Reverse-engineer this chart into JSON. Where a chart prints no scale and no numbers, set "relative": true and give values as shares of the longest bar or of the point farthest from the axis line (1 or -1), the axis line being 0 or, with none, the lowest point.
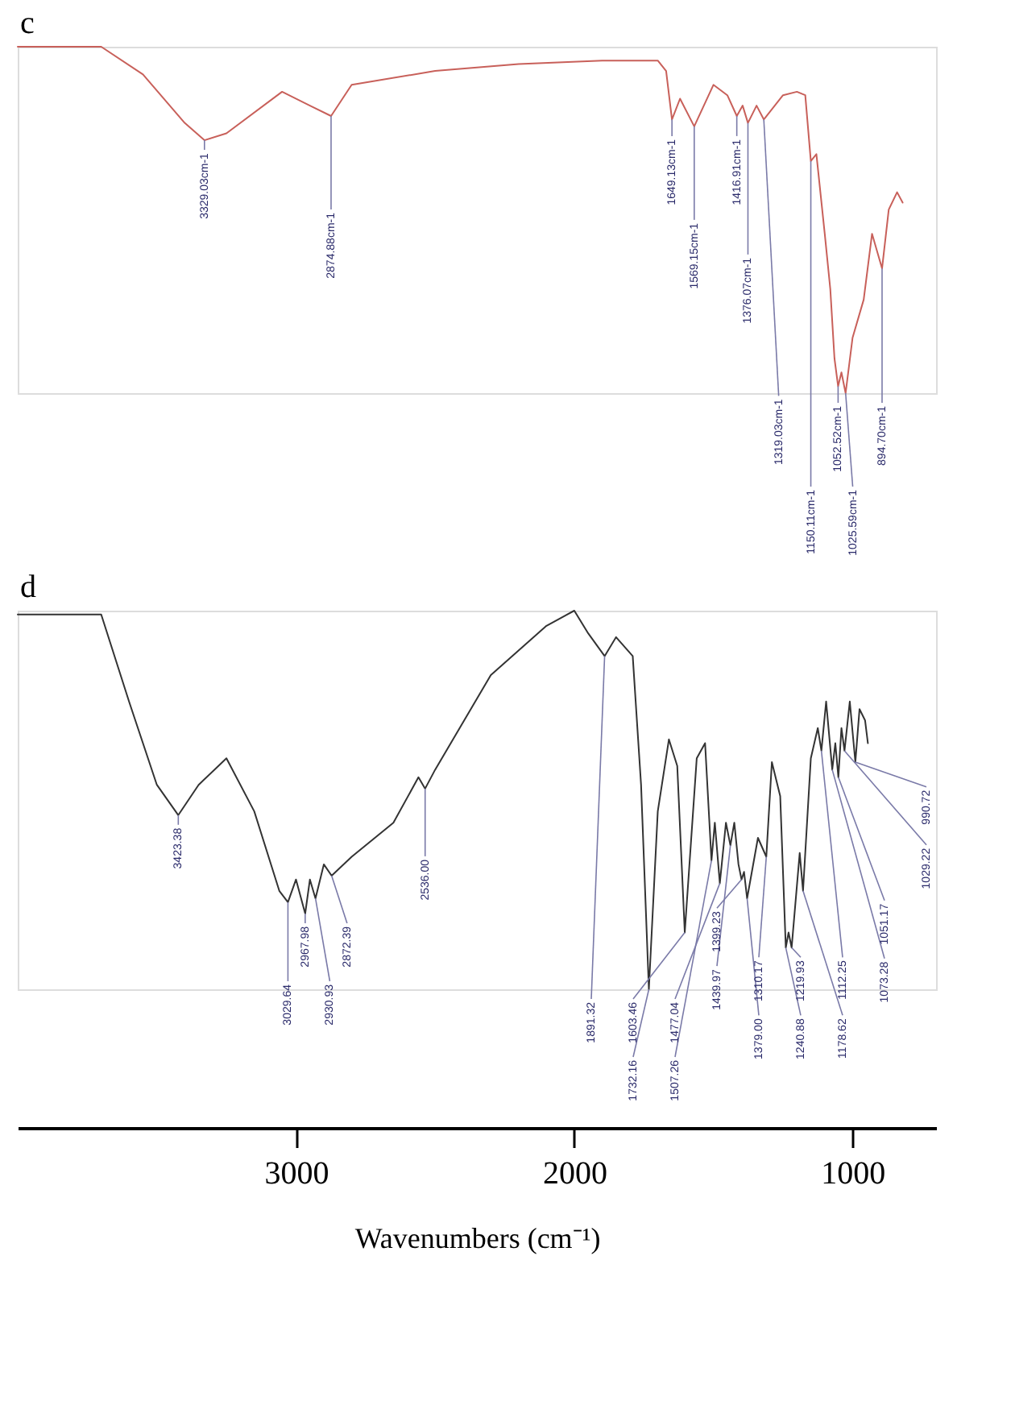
{
  "chart_data": [
    {
      "type": "line",
      "title": "c",
      "relative": true,
      "color": "#c8605a",
      "xlim": [
        4000,
        700
      ],
      "tick_labels": false,
      "x": [
        4000,
        3700,
        3550,
        3400,
        3329,
        3250,
        3050,
        2950,
        2874,
        2800,
        2500,
        2200,
        1900,
        1700,
        1670,
        1649,
        1620,
        1569,
        1500,
        1450,
        1416,
        1395,
        1376,
        1345,
        1319,
        1250,
        1200,
        1170,
        1150,
        1130,
        1100,
        1080,
        1065,
        1052,
        1040,
        1025,
        1000,
        960,
        930,
        894,
        870,
        840,
        820
      ],
      "values": [
        1.0,
        1.0,
        0.92,
        0.78,
        0.73,
        0.75,
        0.87,
        0.83,
        0.8,
        0.89,
        0.93,
        0.95,
        0.96,
        0.96,
        0.93,
        0.79,
        0.85,
        0.77,
        0.89,
        0.86,
        0.8,
        0.83,
        0.78,
        0.83,
        0.79,
        0.86,
        0.87,
        0.86,
        0.67,
        0.69,
        0.46,
        0.3,
        0.1,
        0.02,
        0.06,
        0.0,
        0.16,
        0.27,
        0.46,
        0.36,
        0.53,
        0.58,
        0.55
      ],
      "annotations": [
        {
          "text": "3329.03cm-1",
          "x": 3329,
          "y": 0.73
        },
        {
          "text": "2874.88cm-1",
          "x": 2874,
          "y": 0.8
        },
        {
          "text": "1649.13cm-1",
          "x": 1649,
          "y": 0.79
        },
        {
          "text": "1569.15cm-1",
          "x": 1569,
          "y": 0.77
        },
        {
          "text": "1416.91cm-1",
          "x": 1416,
          "y": 0.8
        },
        {
          "text": "1376.07cm-1",
          "x": 1376,
          "y": 0.78
        },
        {
          "text": "1319.03cm-1",
          "x": 1319,
          "y": 0.79
        },
        {
          "text": "1150.11cm-1",
          "x": 1150,
          "y": 0.67
        },
        {
          "text": "1052.52cm-1",
          "x": 1052,
          "y": 0.02
        },
        {
          "text": "1025.59cm-1",
          "x": 1025,
          "y": 0.0
        },
        {
          "text": "894.70cm-1",
          "x": 894,
          "y": 0.36
        }
      ]
    },
    {
      "type": "line",
      "title": "d",
      "relative": true,
      "color": "#333333",
      "xlim": [
        4000,
        700
      ],
      "xticks": [
        3000,
        2000,
        1000
      ],
      "xlabel": "Wavenumbers (cm⁻¹)",
      "x": [
        4000,
        3700,
        3600,
        3500,
        3423,
        3350,
        3250,
        3150,
        3060,
        3029,
        3000,
        2967,
        2950,
        2930,
        2900,
        2872,
        2800,
        2650,
        2560,
        2536,
        2500,
        2300,
        2100,
        2000,
        1950,
        1891,
        1850,
        1790,
        1760,
        1732,
        1700,
        1660,
        1630,
        1603,
        1560,
        1530,
        1507,
        1495,
        1477,
        1455,
        1439,
        1425,
        1410,
        1399,
        1390,
        1379,
        1340,
        1310,
        1290,
        1260,
        1240,
        1230,
        1219,
        1190,
        1178,
        1150,
        1125,
        1112,
        1095,
        1073,
        1062,
        1051,
        1040,
        1029,
        1010,
        990,
        975,
        955,
        945
      ],
      "values": [
        0.99,
        0.99,
        0.76,
        0.54,
        0.46,
        0.54,
        0.61,
        0.47,
        0.26,
        0.23,
        0.29,
        0.2,
        0.29,
        0.24,
        0.33,
        0.3,
        0.35,
        0.44,
        0.56,
        0.53,
        0.58,
        0.83,
        0.96,
        1.0,
        0.94,
        0.88,
        0.93,
        0.88,
        0.54,
        0.0,
        0.47,
        0.66,
        0.59,
        0.15,
        0.61,
        0.65,
        0.34,
        0.44,
        0.28,
        0.44,
        0.38,
        0.44,
        0.33,
        0.29,
        0.31,
        0.24,
        0.4,
        0.35,
        0.6,
        0.51,
        0.11,
        0.15,
        0.11,
        0.36,
        0.26,
        0.61,
        0.69,
        0.63,
        0.76,
        0.58,
        0.65,
        0.56,
        0.69,
        0.63,
        0.76,
        0.6,
        0.74,
        0.71,
        0.65
      ],
      "annotations": [
        {
          "text": "3423.38",
          "x": 3423,
          "y": 0.46
        },
        {
          "text": "3029.64",
          "x": 3029,
          "y": 0.23
        },
        {
          "text": "2967.98",
          "x": 2967,
          "y": 0.2
        },
        {
          "text": "2930.93",
          "x": 2930,
          "y": 0.24
        },
        {
          "text": "2872.39",
          "x": 2872,
          "y": 0.3
        },
        {
          "text": "2536.00",
          "x": 2536,
          "y": 0.53
        },
        {
          "text": "1891.32",
          "x": 1891,
          "y": 0.88
        },
        {
          "text": "1732.16",
          "x": 1732,
          "y": 0.0
        },
        {
          "text": "1603.46",
          "x": 1603,
          "y": 0.15
        },
        {
          "text": "1507.26",
          "x": 1507,
          "y": 0.34
        },
        {
          "text": "1477.04",
          "x": 1477,
          "y": 0.28
        },
        {
          "text": "1439.97",
          "x": 1439,
          "y": 0.38
        },
        {
          "text": "1399.23",
          "x": 1399,
          "y": 0.29
        },
        {
          "text": "1379.00",
          "x": 1379,
          "y": 0.24
        },
        {
          "text": "1310.17",
          "x": 1310,
          "y": 0.35
        },
        {
          "text": "1240.88",
          "x": 1240,
          "y": 0.11
        },
        {
          "text": "1219.93",
          "x": 1219,
          "y": 0.11
        },
        {
          "text": "1178.62",
          "x": 1178,
          "y": 0.26
        },
        {
          "text": "1112.25",
          "x": 1112,
          "y": 0.63
        },
        {
          "text": "1073.28",
          "x": 1073,
          "y": 0.58
        },
        {
          "text": "1051.17",
          "x": 1051,
          "y": 0.56
        },
        {
          "text": "1029.22",
          "x": 1029,
          "y": 0.63
        },
        {
          "text": "990.72",
          "x": 990,
          "y": 0.6
        }
      ]
    }
  ]
}
